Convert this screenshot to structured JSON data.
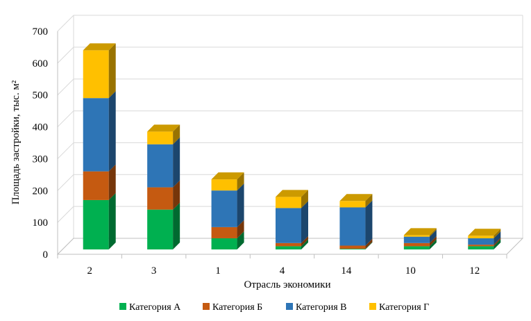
{
  "chart_data": {
    "type": "bar",
    "stacked": true,
    "three_d": true,
    "categories": [
      "2",
      "3",
      "1",
      "4",
      "14",
      "10",
      "12"
    ],
    "series": [
      {
        "name": "Категория А",
        "color": "#00b050",
        "values": [
          155,
          125,
          35,
          10,
          2,
          10,
          10
        ]
      },
      {
        "name": "Категория Б",
        "color": "#c55a11",
        "values": [
          90,
          70,
          35,
          10,
          10,
          10,
          5
        ]
      },
      {
        "name": "Категория В",
        "color": "#2e75b6",
        "values": [
          230,
          135,
          115,
          110,
          120,
          20,
          20
        ]
      },
      {
        "name": "Категория Г",
        "color": "#ffc000",
        "values": [
          150,
          40,
          35,
          35,
          20,
          5,
          8
        ]
      }
    ],
    "xlabel": "Отрасль экономики",
    "ylabel": "Площадь застройки, тыс. м²",
    "ylim": [
      0,
      700
    ],
    "yticks": [
      0,
      100,
      200,
      300,
      400,
      500,
      600,
      700
    ],
    "grid": true,
    "legend_position": "bottom",
    "colors": {
      "grid": "#d9d9d9",
      "axis": "#bfbfbf"
    }
  }
}
